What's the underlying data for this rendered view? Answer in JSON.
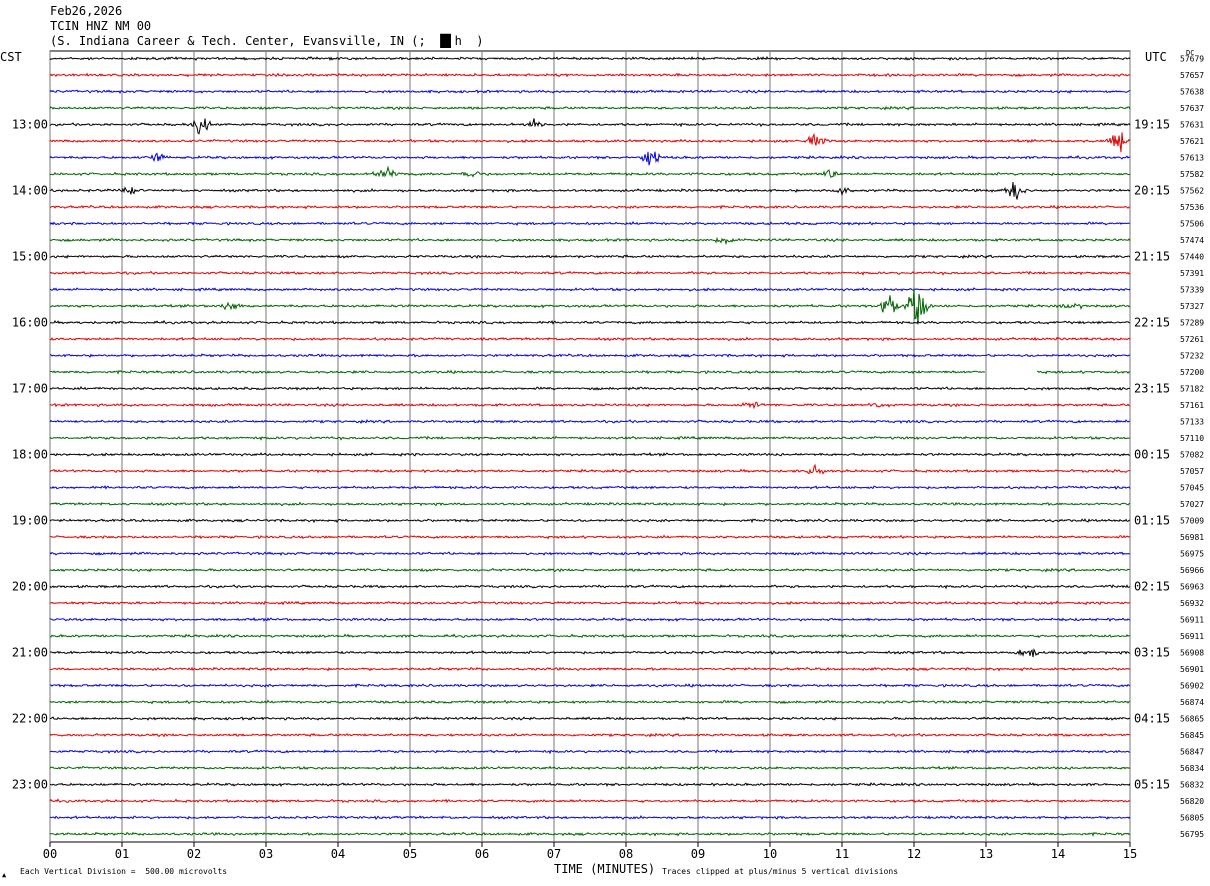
{
  "header": {
    "date": "Feb26,2026",
    "station": "TCIN HNZ NM 00",
    "location": "(S. Indiana Career & Tech. Center, Evansville, IN (;  █▌h  )"
  },
  "left_zone_label": "CST",
  "right_zone_label": "UTC",
  "dc_label": "DC",
  "chart_data": {
    "type": "helicorder",
    "xlabel": "TIME (MINUTES)",
    "x_ticks": [
      "00",
      "01",
      "02",
      "03",
      "04",
      "05",
      "06",
      "07",
      "08",
      "09",
      "10",
      "11",
      "12",
      "13",
      "14",
      "15"
    ],
    "xlim": [
      0,
      15
    ],
    "trace_colors": [
      "#000000",
      "#e00000",
      "#0000e0",
      "#006400"
    ],
    "left_hour_labels": [
      "13:00",
      "14:00",
      "15:00",
      "16:00",
      "17:00",
      "18:00",
      "19:00",
      "20:00",
      "21:00",
      "22:00",
      "23:00"
    ],
    "right_hour_labels": [
      "19:15",
      "20:15",
      "21:15",
      "22:15",
      "23:15",
      "00:15",
      "01:15",
      "02:15",
      "03:15",
      "04:15",
      "05:15"
    ],
    "dc_offsets": [
      57679,
      57657,
      57638,
      57637,
      57631,
      57621,
      57613,
      57582,
      57562,
      57536,
      57506,
      57474,
      57440,
      57391,
      57339,
      57327,
      57289,
      57261,
      57232,
      57200,
      57182,
      57161,
      57133,
      57110,
      57082,
      57057,
      57045,
      57027,
      57009,
      56981,
      56975,
      56966,
      56963,
      56932,
      56911,
      56911,
      56908,
      56901,
      56902,
      56874,
      56865,
      56845,
      56847,
      56834,
      56832,
      56820,
      56805,
      56795
    ],
    "events": [
      {
        "row": 4,
        "minute": 2.1,
        "amp": 1.2
      },
      {
        "row": 4,
        "minute": 6.7,
        "amp": 0.5
      },
      {
        "row": 5,
        "minute": 10.65,
        "amp": 0.9
      },
      {
        "row": 5,
        "minute": 14.85,
        "amp": 1.0
      },
      {
        "row": 6,
        "minute": 1.5,
        "amp": 0.5
      },
      {
        "row": 6,
        "minute": 8.35,
        "amp": 0.9
      },
      {
        "row": 7,
        "minute": 4.65,
        "amp": 1.0
      },
      {
        "row": 7,
        "minute": 5.85,
        "amp": 0.6
      },
      {
        "row": 7,
        "minute": 10.8,
        "amp": 0.6
      },
      {
        "row": 8,
        "minute": 1.1,
        "amp": 0.4
      },
      {
        "row": 8,
        "minute": 11.0,
        "amp": 0.5
      },
      {
        "row": 8,
        "minute": 13.4,
        "amp": 1.3
      },
      {
        "row": 11,
        "minute": 9.35,
        "amp": 0.5
      },
      {
        "row": 15,
        "minute": 2.5,
        "amp": 0.5
      },
      {
        "row": 15,
        "minute": 11.65,
        "amp": 1.2
      },
      {
        "row": 15,
        "minute": 12.05,
        "amp": 2.4
      },
      {
        "row": 15,
        "minute": 14.2,
        "amp": 0.5
      },
      {
        "row": 21,
        "minute": 9.75,
        "amp": 0.4
      },
      {
        "row": 21,
        "minute": 11.5,
        "amp": 0.4
      },
      {
        "row": 25,
        "minute": 10.6,
        "amp": 0.6
      },
      {
        "row": 36,
        "minute": 13.6,
        "amp": 0.8
      }
    ],
    "gaps": [
      {
        "row": 19,
        "from": 13.0,
        "to": 13.7
      }
    ],
    "clip_note": "Traces clipped at plus/minus 5 vertical divisions",
    "scale_note": "Each Vertical Division =  500.00 microvolts"
  }
}
